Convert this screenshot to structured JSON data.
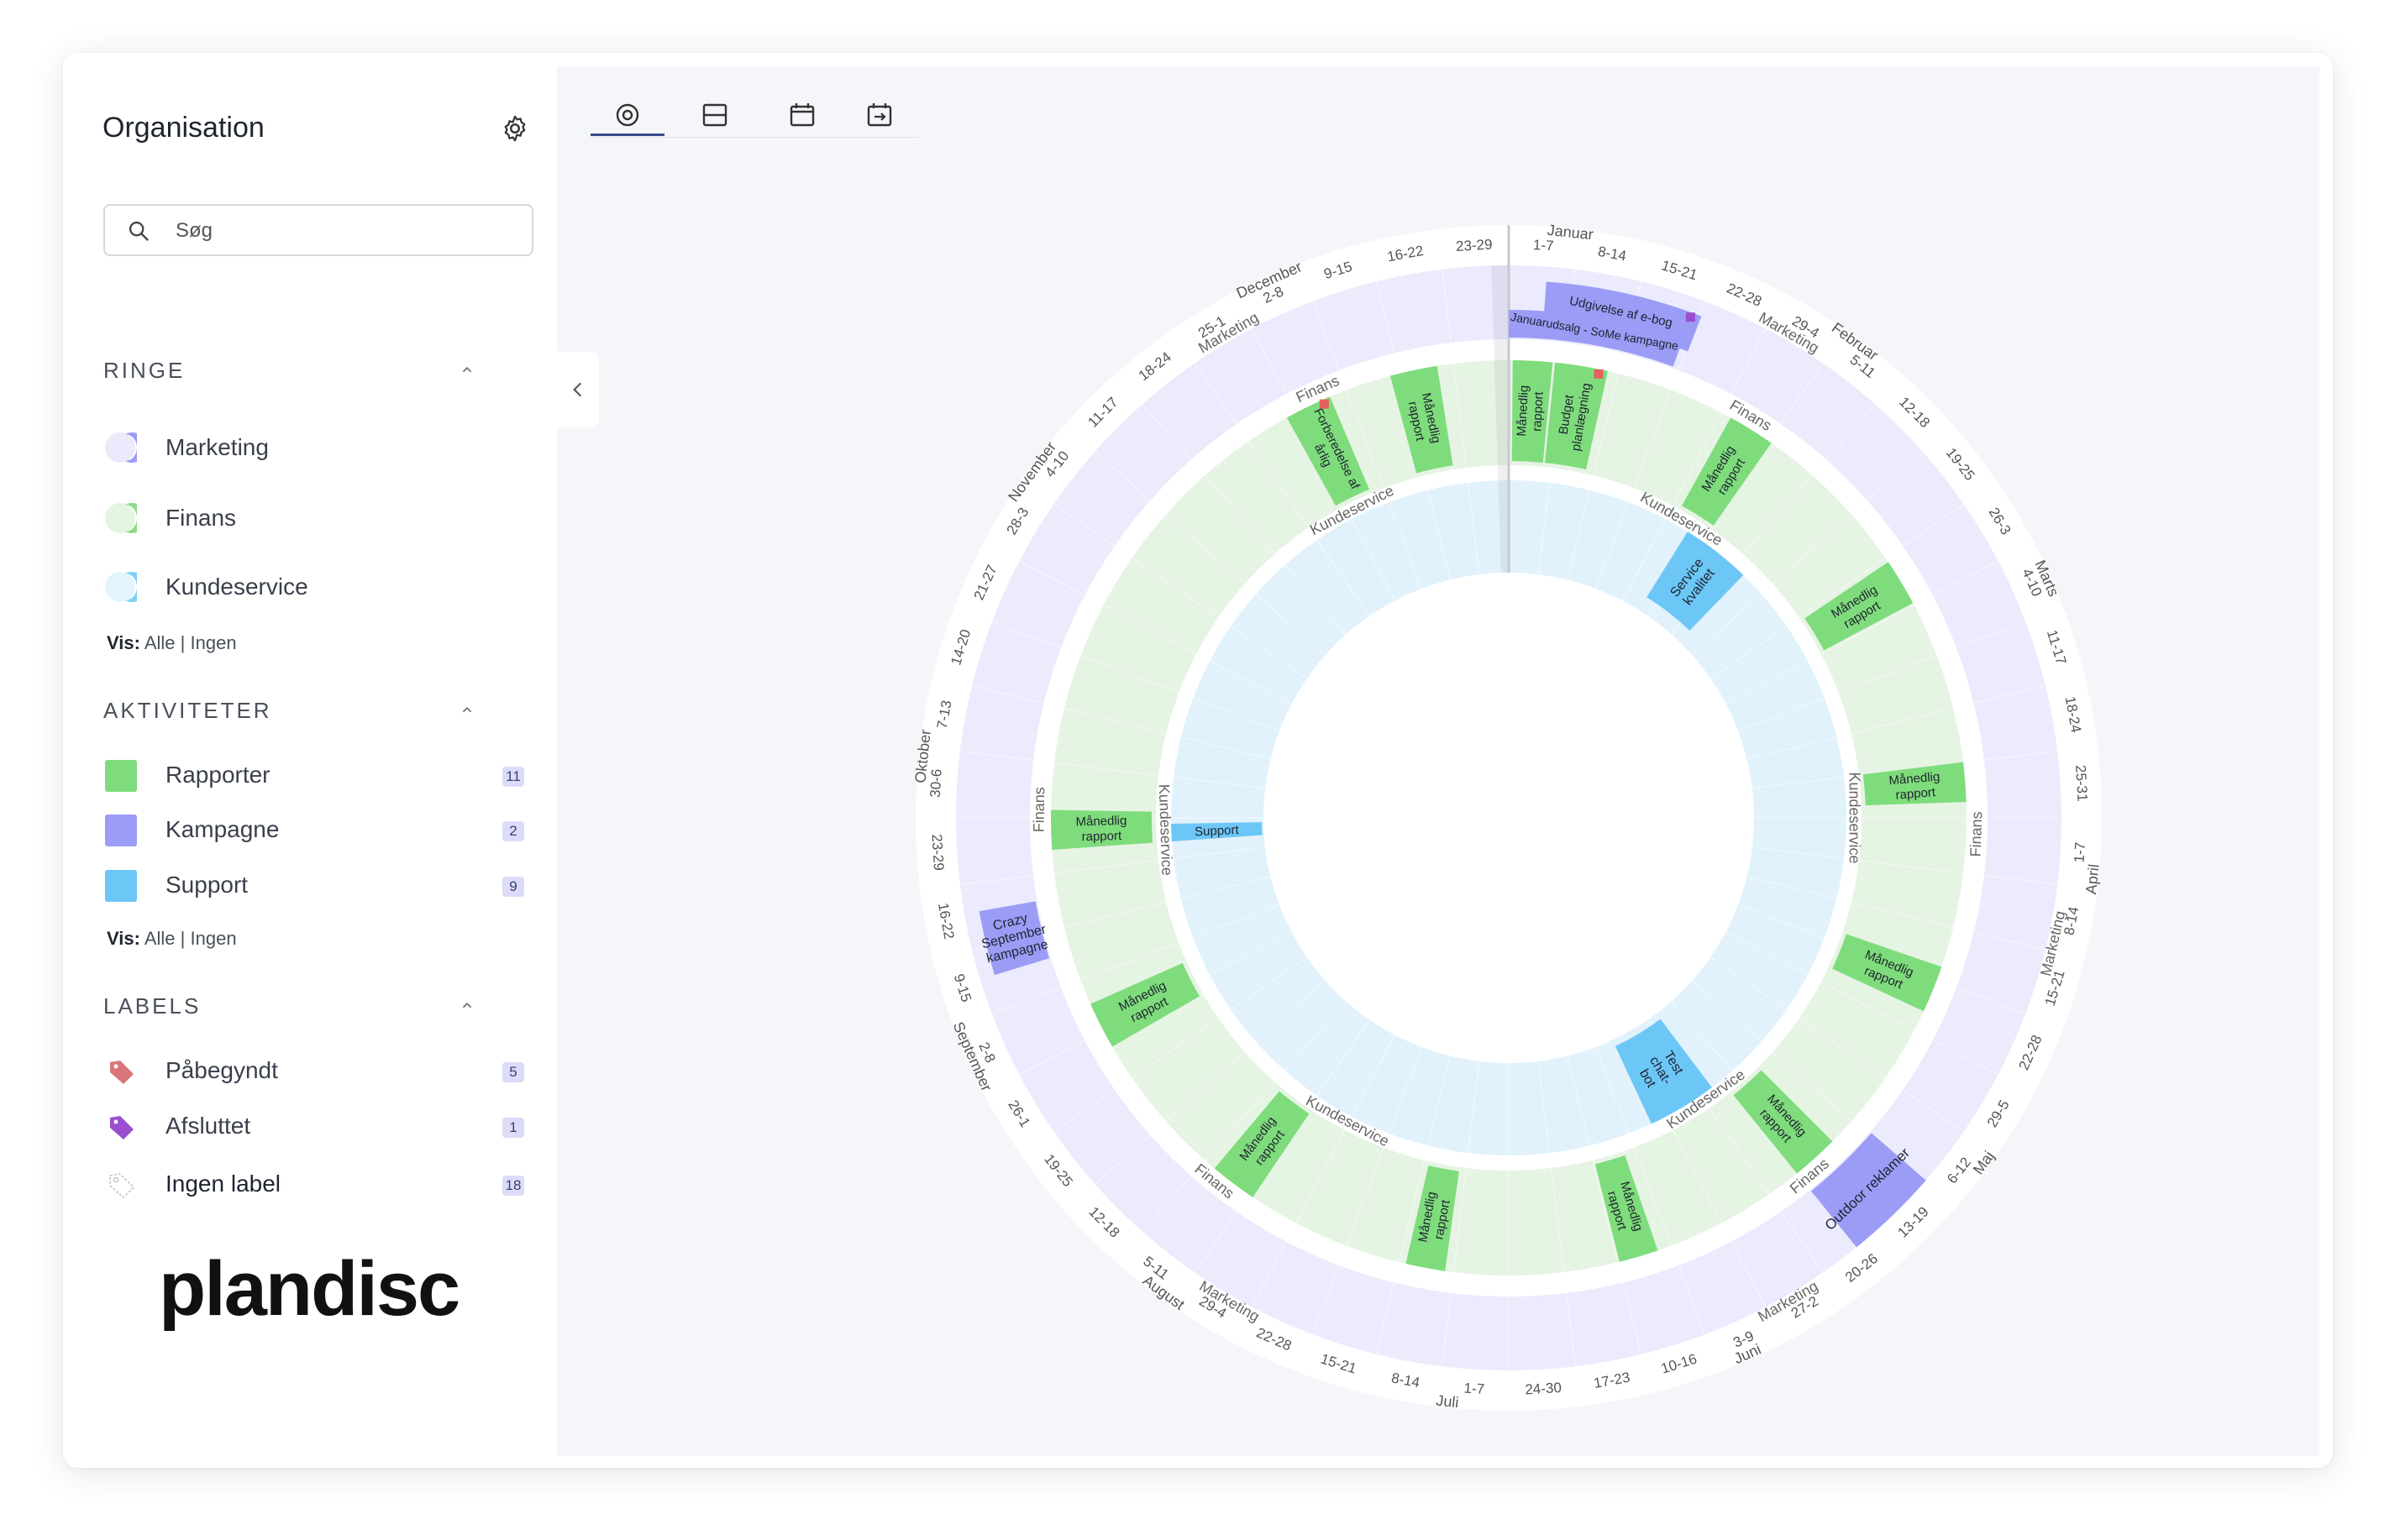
{
  "sidebar": {
    "title": "Organisation",
    "search_placeholder": "Søg",
    "rings_heading": "RINGE",
    "rings": [
      {
        "label": "Marketing",
        "color": "#c9c3f5"
      },
      {
        "label": "Finans",
        "color": "#c6ebc3"
      },
      {
        "label": "Kundeservice",
        "color": "#c8e9fb"
      }
    ],
    "show_label": "Vis:",
    "show_all": "Alle",
    "show_sep": "|",
    "show_none": "Ingen",
    "activities_heading": "AKTIVITETER",
    "activities": [
      {
        "label": "Rapporter",
        "count": "11",
        "color": "#7fdc7c"
      },
      {
        "label": "Kampagne",
        "count": "2",
        "color": "#9b9cf6"
      },
      {
        "label": "Support",
        "count": "9",
        "color": "#6cc7f7"
      }
    ],
    "labels_heading": "LABELS",
    "labels": [
      {
        "label": "Påbegyndt",
        "count": "5",
        "color": "#d9757a",
        "icon": "tag-icon"
      },
      {
        "label": "Afsluttet",
        "count": "1",
        "color": "#9b4ed0",
        "icon": "tag-icon"
      },
      {
        "label": "Ingen label",
        "count": "18",
        "color": "#d0d0d8",
        "icon": "tag-outline-icon"
      }
    ],
    "logo": "plandisc"
  },
  "toolbar": {
    "tabs": [
      {
        "name": "circle-view",
        "icon": "target-icon"
      },
      {
        "name": "list-view",
        "icon": "rows-icon"
      },
      {
        "name": "calendar-view",
        "icon": "calendar-icon"
      },
      {
        "name": "export-view",
        "icon": "calendar-export-icon"
      }
    ]
  },
  "wheel": {
    "months": [
      "Januar",
      "Februar",
      "Marts",
      "April",
      "Maj",
      "Juni",
      "Juli",
      "August",
      "September",
      "Oktober",
      "November",
      "December"
    ],
    "weeks": [
      "1-7",
      "8-14",
      "15-21",
      "22-28",
      "29-4",
      "5-11",
      "12-18",
      "19-25",
      "26-3",
      "4-10",
      "11-17",
      "18-24",
      "25-31",
      "1-7",
      "8-14",
      "15-21",
      "22-28",
      "29-5",
      "6-12",
      "13-19",
      "20-26",
      "27-2",
      "3-9",
      "10-16",
      "17-23",
      "24-30",
      "1-7",
      "8-14",
      "15-21",
      "22-28",
      "29-4",
      "5-11",
      "12-18",
      "19-25",
      "26-1",
      "2-8",
      "9-15",
      "16-22",
      "23-29",
      "30-6",
      "7-13",
      "14-20",
      "21-27",
      "28-3",
      "4-10",
      "11-17",
      "18-24",
      "25-1",
      "2-8",
      "9-15",
      "16-22",
      "23-29"
    ],
    "ring_labels": {
      "marketing": "Marketing",
      "finans": "Finans",
      "kundeservice": "Kundeservice"
    },
    "marketing_events": [
      {
        "label": "Udgivelse af e-bog",
        "color": "#9b9cf6"
      },
      {
        "label": "Januarudsalg - SoMe kampagne",
        "color": "#9b9cf6"
      },
      {
        "label": "Crazy September kampagne",
        "color": "#9b9cf6"
      },
      {
        "label": "Outdoor reklamer",
        "color": "#9b9cf6"
      }
    ],
    "finans_events": [
      {
        "label": "Månedlig rapport",
        "color": "#7fdc7c"
      },
      {
        "label": "Budget planlægning",
        "color": "#7fdc7c"
      },
      {
        "label": "Månedlig rapport",
        "color": "#7fdc7c"
      },
      {
        "label": "Månedlig rapport",
        "color": "#7fdc7c"
      },
      {
        "label": "Månedlig rapport",
        "color": "#7fdc7c"
      },
      {
        "label": "Månedlig rapport",
        "color": "#7fdc7c"
      },
      {
        "label": "Månedlig rapport",
        "color": "#7fdc7c"
      },
      {
        "label": "Månedlig rapport",
        "color": "#7fdc7c"
      },
      {
        "label": "Månedlig rapport",
        "color": "#7fdc7c"
      },
      {
        "label": "Månedlig rapport",
        "color": "#7fdc7c"
      },
      {
        "label": "Månedlig rapport",
        "color": "#7fdc7c"
      },
      {
        "label": "Månedlig rapport",
        "color": "#7fdc7c"
      },
      {
        "label": "Forberedelse af årlig",
        "color": "#7fdc7c"
      },
      {
        "label": "Månedlig rapport",
        "color": "#7fdc7c"
      }
    ],
    "kundeservice_events": [
      {
        "label": "Service kvalitet",
        "color": "#6cc7f7"
      },
      {
        "label": "Test chat-bot",
        "color": "#6cc7f7"
      },
      {
        "label": "Support",
        "color": "#6cc7f7"
      }
    ]
  }
}
